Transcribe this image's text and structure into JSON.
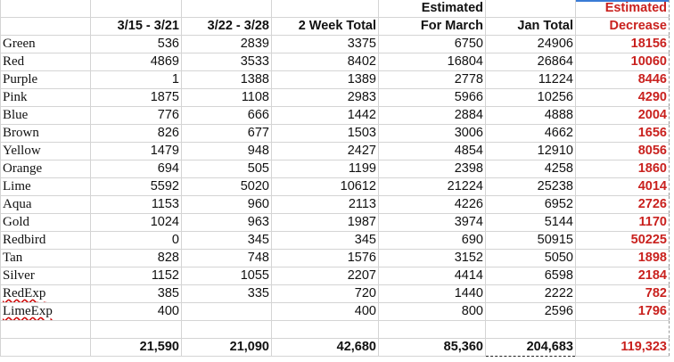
{
  "headers": {
    "week1": "3/15 - 3/21",
    "week2": "3/22 - 3/28",
    "two_week": "2 Week Total",
    "est_march_1": "Estimated",
    "est_march_2": "For March",
    "jan": "Jan Total",
    "est_dec_1": "Estimated",
    "est_dec_2": "Decrease"
  },
  "rows": [
    {
      "name": "Green",
      "w1": "536",
      "w2": "2839",
      "two": "3375",
      "est": "6750",
      "jan": "24906",
      "dec": "18156"
    },
    {
      "name": "Red",
      "w1": "4869",
      "w2": "3533",
      "two": "8402",
      "est": "16804",
      "jan": "26864",
      "dec": "10060"
    },
    {
      "name": "Purple",
      "w1": "1",
      "w2": "1388",
      "two": "1389",
      "est": "2778",
      "jan": "11224",
      "dec": "8446"
    },
    {
      "name": "Pink",
      "w1": "1875",
      "w2": "1108",
      "two": "2983",
      "est": "5966",
      "jan": "10256",
      "dec": "4290"
    },
    {
      "name": "Blue",
      "w1": "776",
      "w2": "666",
      "two": "1442",
      "est": "2884",
      "jan": "4888",
      "dec": "2004"
    },
    {
      "name": "Brown",
      "w1": "826",
      "w2": "677",
      "two": "1503",
      "est": "3006",
      "jan": "4662",
      "dec": "1656"
    },
    {
      "name": "Yellow",
      "w1": "1479",
      "w2": "948",
      "two": "2427",
      "est": "4854",
      "jan": "12910",
      "dec": "8056"
    },
    {
      "name": "Orange",
      "w1": "694",
      "w2": "505",
      "two": "1199",
      "est": "2398",
      "jan": "4258",
      "dec": "1860"
    },
    {
      "name": "Lime",
      "w1": "5592",
      "w2": "5020",
      "two": "10612",
      "est": "21224",
      "jan": "25238",
      "dec": "4014"
    },
    {
      "name": "Aqua",
      "w1": "1153",
      "w2": "960",
      "two": "2113",
      "est": "4226",
      "jan": "6952",
      "dec": "2726"
    },
    {
      "name": "Gold",
      "w1": "1024",
      "w2": "963",
      "two": "1987",
      "est": "3974",
      "jan": "5144",
      "dec": "1170"
    },
    {
      "name": "Redbird",
      "w1": "0",
      "w2": "345",
      "two": "345",
      "est": "690",
      "jan": "50915",
      "dec": "50225"
    },
    {
      "name": "Tan",
      "w1": "828",
      "w2": "748",
      "two": "1576",
      "est": "3152",
      "jan": "5050",
      "dec": "1898"
    },
    {
      "name": "Silver",
      "w1": "1152",
      "w2": "1055",
      "two": "2207",
      "est": "4414",
      "jan": "6598",
      "dec": "2184"
    },
    {
      "name": "RedExp",
      "w1": "385",
      "w2": "335",
      "two": "720",
      "est": "1440",
      "jan": "2222",
      "dec": "782"
    },
    {
      "name": "LimeExp",
      "w1": "400",
      "w2": "",
      "two": "400",
      "est": "800",
      "jan": "2596",
      "dec": "1796"
    }
  ],
  "totals": {
    "w1": "21,590",
    "w2": "21,090",
    "two": "42,680",
    "est": "85,360",
    "jan": "204,683",
    "dec": "119,323"
  },
  "colors": {
    "accent_red": "#c9211e",
    "selection": "#3a7bd5"
  }
}
